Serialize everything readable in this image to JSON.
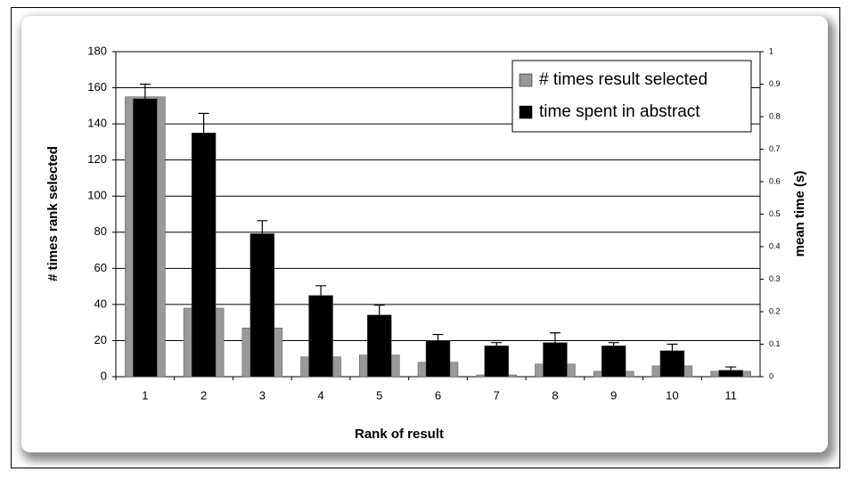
{
  "chart_data": {
    "type": "bar",
    "xlabel": "Rank of result",
    "ylabel": "# times rank selected",
    "y2label": "mean time (s)",
    "categories": [
      "1",
      "2",
      "3",
      "4",
      "5",
      "6",
      "7",
      "8",
      "9",
      "10",
      "11"
    ],
    "series": [
      {
        "name": "# times result selected",
        "color": "#999999",
        "values": [
          155,
          38,
          27,
          11,
          12,
          8,
          1,
          7,
          3,
          6,
          3
        ]
      },
      {
        "name": "time spent in abstract",
        "color": "#000000",
        "axis": "y2",
        "values": [
          0.855,
          0.75,
          0.44,
          0.25,
          0.19,
          0.11,
          0.095,
          0.105,
          0.095,
          0.08,
          0.02
        ],
        "errors": [
          0.045,
          0.06,
          0.04,
          0.03,
          0.03,
          0.02,
          0.01,
          0.03,
          0.01,
          0.02,
          0.01
        ]
      }
    ],
    "ylim": [
      0,
      180
    ],
    "yticks": [
      0,
      20,
      40,
      60,
      80,
      100,
      120,
      140,
      160,
      180
    ],
    "y2lim": [
      0,
      1
    ],
    "y2ticks": [
      0,
      0.1,
      0.2,
      0.3,
      0.4,
      0.5,
      0.6,
      0.7,
      0.8,
      0.9,
      1
    ],
    "grid": true,
    "legend": "upper right"
  }
}
